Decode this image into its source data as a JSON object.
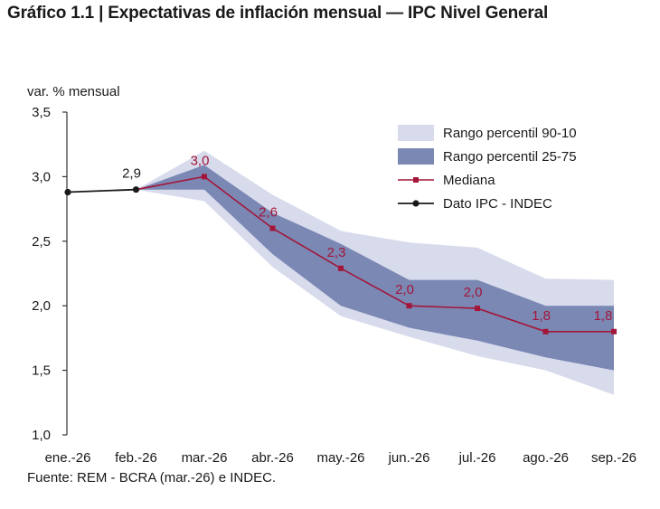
{
  "title": "Gráfico 1.1 | Expectativas de inflación mensual — IPC Nivel General",
  "source": "Fuente: REM - BCRA (mar.-26) e INDEC.",
  "colors": {
    "band_90_10": "#d8dbec",
    "band_25_75": "#7b88b4",
    "median": "#a3163a",
    "indec": "#1a1a1a"
  },
  "chart_data": {
    "type": "line",
    "ylabel": "var. % mensual",
    "ylim": [
      1.0,
      3.5
    ],
    "yticks": [
      "1,0",
      "1,5",
      "2,0",
      "2,5",
      "3,0",
      "3,5"
    ],
    "categories": [
      "ene.-26",
      "feb.-26",
      "mar.-26",
      "abr.-26",
      "may.-26",
      "jun.-26",
      "jul.-26",
      "ago.-26",
      "sep.-26"
    ],
    "legend": [
      {
        "key": "p90_10",
        "label": "Rango percentil 90-10"
      },
      {
        "key": "p25_75",
        "label": "Rango percentil 25-75"
      },
      {
        "key": "median",
        "label": "Mediana"
      },
      {
        "key": "indec",
        "label": "Dato IPC - INDEC"
      }
    ],
    "legend_position": "top-right",
    "series": {
      "indec": {
        "name": "Dato IPC - INDEC",
        "x_index": [
          0,
          1
        ],
        "values": [
          2.88,
          2.9
        ]
      },
      "median": {
        "name": "Mediana",
        "x_index": [
          1,
          2,
          3,
          4,
          5,
          6,
          7,
          8
        ],
        "values": [
          2.9,
          3.0,
          2.6,
          2.29,
          2.0,
          1.98,
          1.8,
          1.8
        ]
      },
      "p25_75": {
        "name": "Rango percentil 25-75",
        "x_index": [
          1,
          2,
          3,
          4,
          5,
          6,
          7,
          8
        ],
        "low": [
          2.9,
          2.9,
          2.4,
          2.0,
          1.83,
          1.73,
          1.6,
          1.5
        ],
        "high": [
          2.9,
          3.09,
          2.72,
          2.48,
          2.2,
          2.2,
          2.0,
          2.0
        ]
      },
      "p90_10": {
        "name": "Rango percentil 90-10",
        "x_index": [
          1,
          2,
          3,
          4,
          5,
          6,
          7,
          8
        ],
        "low": [
          2.9,
          2.81,
          2.3,
          1.92,
          1.76,
          1.61,
          1.5,
          1.31
        ],
        "high": [
          2.9,
          3.2,
          2.86,
          2.58,
          2.49,
          2.45,
          2.21,
          2.2
        ]
      }
    },
    "data_labels": [
      {
        "x_index": 1,
        "text": "2,9",
        "color": "indec"
      },
      {
        "x_index": 2,
        "text": "3,0",
        "color": "median"
      },
      {
        "x_index": 3,
        "text": "2,6",
        "color": "median"
      },
      {
        "x_index": 4,
        "text": "2,3",
        "color": "median"
      },
      {
        "x_index": 5,
        "text": "2,0",
        "color": "median"
      },
      {
        "x_index": 6,
        "text": "2,0",
        "color": "median"
      },
      {
        "x_index": 7,
        "text": "1,8",
        "color": "median"
      },
      {
        "x_index": 8,
        "text": "1,8",
        "color": "median"
      }
    ],
    "grid": false
  }
}
